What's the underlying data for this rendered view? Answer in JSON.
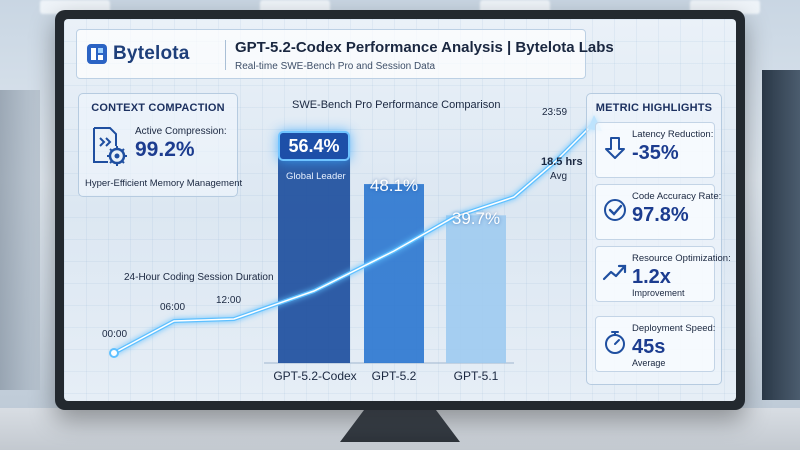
{
  "header": {
    "logo_text": "Bytelota",
    "title": "GPT-5.2-Codex Performance Analysis | Bytelota Labs",
    "subtitle": "Real-time SWE-Bench Pro and Session Data"
  },
  "context_compaction": {
    "title": "CONTEXT COMPACTION",
    "label": "Active Compression:",
    "value": "99.2%",
    "note": "Hyper-Efficient Memory Management"
  },
  "chart_data": {
    "type": "bar",
    "title": "SWE-Bench Pro Performance Comparison",
    "categories": [
      "GPT-5.2-Codex",
      "GPT-5.2",
      "GPT-5.1"
    ],
    "values": [
      56.4,
      48.1,
      39.7
    ],
    "value_labels": [
      "56.4%",
      "48.1%",
      "39.7%"
    ],
    "leader_note": "Global Leader",
    "colors": [
      "#1e4f9e",
      "#2f78d0",
      "#9fcbf0"
    ],
    "overlay_line": {
      "title": "24-Hour Coding Session Duration",
      "time_labels": [
        "00:00",
        "06:00",
        "12:00",
        "23:59"
      ],
      "duration_value": "18.5 hrs",
      "duration_note": "Avg"
    }
  },
  "metric_highlights": {
    "title": "METRIC HIGHLIGHTS",
    "items": [
      {
        "label": "Latency Reduction:",
        "value": "-35%",
        "note": "",
        "icon": "arrow-down-icon"
      },
      {
        "label": "Code Accuracy Rate:",
        "value": "97.8%",
        "note": "",
        "icon": "check-circle-icon"
      },
      {
        "label": "Resource Optimization:",
        "value": "1.2x",
        "note": "Improvement",
        "icon": "trend-up-icon"
      },
      {
        "label": "Deployment Speed:",
        "value": "45s",
        "note": "Average",
        "icon": "stopwatch-icon"
      }
    ]
  },
  "colors": {
    "accent": "#1c3c8f",
    "glow": "#5fc0ff"
  }
}
